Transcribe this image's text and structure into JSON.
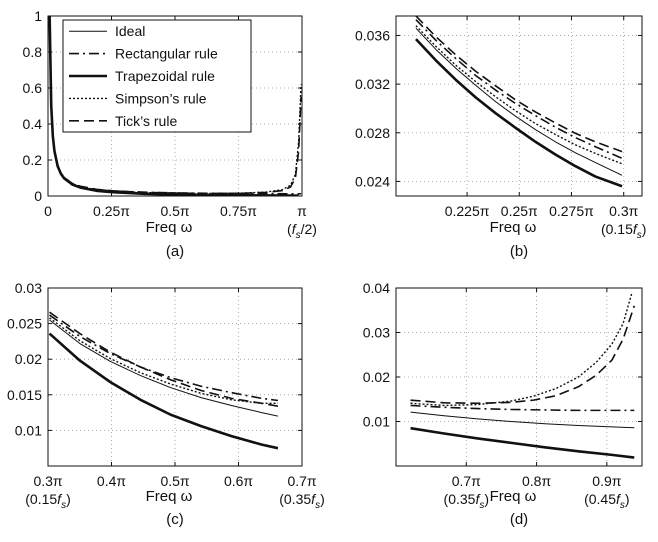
{
  "figure": {
    "background": "#ffffff",
    "ink": "#111111",
    "grid_color": "#999999"
  },
  "chart_data": [
    {
      "panel": "(a)",
      "type": "line",
      "xlabel": "Freq ω",
      "ylabel": "",
      "xlim": [
        0,
        3.1416
      ],
      "ylim": [
        0,
        1
      ],
      "grid": true,
      "x_ticks": [
        {
          "value": 0,
          "label": "0"
        },
        {
          "value": 0.7854,
          "label": "0.25π"
        },
        {
          "value": 1.5708,
          "label": "0.5π"
        },
        {
          "value": 2.3562,
          "label": "0.75π"
        },
        {
          "value": 3.1416,
          "label": "π",
          "sublabel": "(fs/2)"
        }
      ],
      "y_ticks": [
        {
          "value": 0,
          "label": "0"
        },
        {
          "value": 0.2,
          "label": "0.2"
        },
        {
          "value": 0.4,
          "label": "0.4"
        },
        {
          "value": 0.6,
          "label": "0.6"
        },
        {
          "value": 0.8,
          "label": "0.8"
        },
        {
          "value": 1,
          "label": "1"
        }
      ],
      "legend": {
        "placement": "top-center",
        "entries": [
          {
            "label": "Ideal",
            "style": "thin"
          },
          {
            "label": "Rectangular rule",
            "style": "dashdot"
          },
          {
            "label": "Trapezoidal rule",
            "style": "thick"
          },
          {
            "label": "Simpson’s rule",
            "style": "dotted"
          },
          {
            "label": "Tick’s rule",
            "style": "dashed"
          }
        ]
      },
      "series": [
        {
          "style": "thin",
          "x": [
            0.02,
            0.04,
            0.06,
            0.08,
            0.12,
            0.16,
            0.2,
            0.3,
            0.4,
            0.6,
            0.8,
            1.2,
            1.6,
            2.0,
            2.4,
            2.8,
            3.0,
            3.1
          ],
          "y": [
            1.0,
            0.5,
            0.333,
            0.25,
            0.167,
            0.125,
            0.1,
            0.067,
            0.05,
            0.033,
            0.025,
            0.0167,
            0.0125,
            0.01,
            0.0083,
            0.0071,
            0.0067,
            0.0065
          ]
        },
        {
          "style": "dashdot",
          "x": [
            0.02,
            0.04,
            0.06,
            0.08,
            0.12,
            0.16,
            0.2,
            0.3,
            0.4,
            0.6,
            0.8,
            1.2,
            1.6,
            2.0,
            2.4,
            2.8,
            2.95,
            3.05,
            3.1,
            3.13
          ],
          "y": [
            1.0,
            0.5,
            0.334,
            0.251,
            0.168,
            0.127,
            0.102,
            0.069,
            0.053,
            0.036,
            0.028,
            0.021,
            0.017,
            0.015,
            0.014,
            0.013,
            0.0125,
            0.0125,
            0.0125,
            0.0125
          ]
        },
        {
          "style": "thick",
          "x": [
            0.02,
            0.04,
            0.06,
            0.08,
            0.12,
            0.16,
            0.2,
            0.3,
            0.4,
            0.6,
            0.8,
            1.2,
            1.6,
            2.0,
            2.4,
            2.8,
            3.0,
            3.1
          ],
          "y": [
            1.0,
            0.5,
            0.332,
            0.249,
            0.165,
            0.123,
            0.098,
            0.064,
            0.047,
            0.029,
            0.021,
            0.012,
            0.008,
            0.005,
            0.003,
            0.0015,
            0.001,
            0.0005
          ]
        },
        {
          "style": "dotted",
          "x": [
            0.02,
            0.04,
            0.06,
            0.08,
            0.12,
            0.16,
            0.2,
            0.3,
            0.4,
            0.6,
            0.8,
            1.2,
            1.6,
            2.0,
            2.4,
            2.7,
            2.9,
            3.0,
            3.06,
            3.1,
            3.13
          ],
          "y": [
            1.0,
            0.5,
            0.334,
            0.251,
            0.167,
            0.126,
            0.101,
            0.068,
            0.052,
            0.035,
            0.027,
            0.019,
            0.016,
            0.014,
            0.016,
            0.022,
            0.035,
            0.06,
            0.12,
            0.3,
            0.62
          ]
        },
        {
          "style": "dashed",
          "x": [
            0.02,
            0.04,
            0.06,
            0.08,
            0.12,
            0.16,
            0.2,
            0.3,
            0.4,
            0.6,
            0.8,
            1.2,
            1.6,
            2.0,
            2.4,
            2.7,
            2.9,
            3.0,
            3.06,
            3.1,
            3.13
          ],
          "y": [
            1.0,
            0.5,
            0.335,
            0.252,
            0.169,
            0.128,
            0.103,
            0.07,
            0.054,
            0.037,
            0.029,
            0.02,
            0.016,
            0.014,
            0.015,
            0.02,
            0.03,
            0.05,
            0.1,
            0.25,
            0.55
          ]
        }
      ]
    },
    {
      "panel": "(b)",
      "type": "line",
      "xlabel": "Freq ω",
      "ylabel": "",
      "xlim": [
        0.6,
        0.97
      ],
      "ylim": [
        0.0228,
        0.0376
      ],
      "grid": true,
      "x_ticks": [
        {
          "value": 0.7069,
          "label": "0.225π"
        },
        {
          "value": 0.7854,
          "label": "0.25π"
        },
        {
          "value": 0.8639,
          "label": "0.275π"
        },
        {
          "value": 0.9425,
          "label": "0.3π",
          "sublabel": "(0.15fs)"
        }
      ],
      "y_ticks": [
        {
          "value": 0.024,
          "label": "0.024"
        },
        {
          "value": 0.028,
          "label": "0.028"
        },
        {
          "value": 0.032,
          "label": "0.032"
        },
        {
          "value": 0.036,
          "label": "0.036"
        }
      ],
      "series": [
        {
          "style": "thin",
          "x": [
            0.63,
            0.66,
            0.69,
            0.72,
            0.75,
            0.78,
            0.81,
            0.84,
            0.87,
            0.9,
            0.94
          ],
          "y": [
            0.0366,
            0.03485,
            0.0333,
            0.0319,
            0.03055,
            0.02935,
            0.02825,
            0.02725,
            0.02635,
            0.02555,
            0.0245
          ]
        },
        {
          "style": "dashdot",
          "x": [
            0.63,
            0.66,
            0.69,
            0.72,
            0.75,
            0.78,
            0.81,
            0.84,
            0.87,
            0.9,
            0.94
          ],
          "y": [
            0.0373,
            0.0356,
            0.0341,
            0.0327,
            0.0315,
            0.0304,
            0.0294,
            0.02845,
            0.0276,
            0.02685,
            0.0259
          ]
        },
        {
          "style": "thick",
          "x": [
            0.63,
            0.66,
            0.69,
            0.72,
            0.75,
            0.78,
            0.81,
            0.84,
            0.87,
            0.9,
            0.94
          ],
          "y": [
            0.0357,
            0.03395,
            0.03235,
            0.0309,
            0.0296,
            0.0284,
            0.02725,
            0.0262,
            0.02525,
            0.0244,
            0.0236
          ]
        },
        {
          "style": "dotted",
          "x": [
            0.63,
            0.66,
            0.69,
            0.72,
            0.75,
            0.78,
            0.81,
            0.84,
            0.87,
            0.9,
            0.94
          ],
          "y": [
            0.0368,
            0.0351,
            0.03355,
            0.0322,
            0.03095,
            0.0298,
            0.02875,
            0.02785,
            0.027,
            0.0263,
            0.02545
          ]
        },
        {
          "style": "dashed",
          "x": [
            0.63,
            0.66,
            0.69,
            0.72,
            0.75,
            0.78,
            0.81,
            0.84,
            0.87,
            0.9,
            0.94
          ],
          "y": [
            0.0376,
            0.0359,
            0.0344,
            0.03305,
            0.03185,
            0.0307,
            0.0297,
            0.0288,
            0.02795,
            0.02725,
            0.02645
          ]
        }
      ]
    },
    {
      "panel": "(c)",
      "type": "line",
      "xlabel": "Freq ω",
      "ylabel": "",
      "xlim": [
        0.9425,
        2.1991
      ],
      "ylim": [
        0.005,
        0.03
      ],
      "grid": true,
      "x_ticks": [
        {
          "value": 0.9425,
          "label": "0.3π",
          "sublabel": "(0.15fs)"
        },
        {
          "value": 1.2566,
          "label": "0.4π"
        },
        {
          "value": 1.5708,
          "label": "0.5π"
        },
        {
          "value": 1.885,
          "label": "0.6π"
        },
        {
          "value": 2.1991,
          "label": "0.7π",
          "sublabel": "(0.35fs)"
        }
      ],
      "y_ticks": [
        {
          "value": 0.01,
          "label": "0.01"
        },
        {
          "value": 0.015,
          "label": "0.015"
        },
        {
          "value": 0.02,
          "label": "0.02"
        },
        {
          "value": 0.025,
          "label": "0.025"
        },
        {
          "value": 0.03,
          "label": "0.03"
        }
      ],
      "series": [
        {
          "style": "thin",
          "x": [
            0.95,
            1.1,
            1.25,
            1.4,
            1.55,
            1.7,
            1.85,
            2.0,
            2.08
          ],
          "y": [
            0.0255,
            0.0222,
            0.0197,
            0.0177,
            0.016,
            0.0146,
            0.0135,
            0.0125,
            0.012
          ]
        },
        {
          "style": "dashdot",
          "x": [
            0.95,
            1.1,
            1.25,
            1.4,
            1.55,
            1.7,
            1.85,
            2.0,
            2.08
          ],
          "y": [
            0.0262,
            0.0232,
            0.0208,
            0.0189,
            0.0174,
            0.0162,
            0.0153,
            0.0145,
            0.0142
          ]
        },
        {
          "style": "thick",
          "x": [
            0.95,
            1.1,
            1.25,
            1.4,
            1.55,
            1.7,
            1.85,
            2.0,
            2.08
          ],
          "y": [
            0.0236,
            0.0198,
            0.0168,
            0.0143,
            0.0122,
            0.0106,
            0.0092,
            0.008,
            0.0075
          ]
        },
        {
          "style": "dotted",
          "x": [
            0.95,
            1.1,
            1.25,
            1.4,
            1.55,
            1.7,
            1.85,
            2.0,
            2.08
          ],
          "y": [
            0.0258,
            0.0226,
            0.0201,
            0.0181,
            0.0165,
            0.0152,
            0.0143,
            0.0138,
            0.0138
          ]
        },
        {
          "style": "dashed",
          "x": [
            0.95,
            1.1,
            1.25,
            1.4,
            1.55,
            1.7,
            1.85,
            2.0,
            2.08
          ],
          "y": [
            0.0266,
            0.0236,
            0.021,
            0.0189,
            0.0171,
            0.0156,
            0.0145,
            0.0138,
            0.0134
          ]
        }
      ]
    },
    {
      "panel": "(d)",
      "type": "line",
      "xlabel": "Freq ω",
      "ylabel": "",
      "xlim": [
        1.885,
        2.9845
      ],
      "ylim": [
        0.0,
        0.04
      ],
      "grid": true,
      "x_ticks": [
        {
          "value": 2.1991,
          "label": "0.7π",
          "sublabel": "(0.35fs)"
        },
        {
          "value": 2.5133,
          "label": "0.8π"
        },
        {
          "value": 2.8274,
          "label": "0.9π",
          "sublabel": "(0.45fs)"
        }
      ],
      "y_ticks": [
        {
          "value": 0.01,
          "label": "0.01"
        },
        {
          "value": 0.02,
          "label": "0.02"
        },
        {
          "value": 0.03,
          "label": "0.03"
        },
        {
          "value": 0.04,
          "label": "0.04"
        }
      ],
      "series": [
        {
          "style": "thin",
          "x": [
            1.95,
            2.1,
            2.25,
            2.4,
            2.55,
            2.7,
            2.85,
            2.95
          ],
          "y": [
            0.0121,
            0.0113,
            0.0106,
            0.01,
            0.0095,
            0.0091,
            0.0088,
            0.0086
          ]
        },
        {
          "style": "dashdot",
          "x": [
            1.95,
            2.1,
            2.25,
            2.4,
            2.55,
            2.7,
            2.85,
            2.95
          ],
          "y": [
            0.0136,
            0.0132,
            0.0129,
            0.0127,
            0.0126,
            0.0125,
            0.0125,
            0.0125
          ]
        },
        {
          "style": "thick",
          "x": [
            1.95,
            2.1,
            2.25,
            2.4,
            2.55,
            2.7,
            2.85,
            2.95
          ],
          "y": [
            0.0085,
            0.0073,
            0.0062,
            0.0052,
            0.0042,
            0.0033,
            0.0025,
            0.0019
          ]
        },
        {
          "style": "dotted",
          "x": [
            1.95,
            2.1,
            2.25,
            2.4,
            2.5,
            2.6,
            2.7,
            2.78,
            2.85,
            2.9,
            2.94
          ],
          "y": [
            0.0141,
            0.0136,
            0.0138,
            0.0146,
            0.0157,
            0.0174,
            0.02,
            0.0233,
            0.0274,
            0.032,
            0.039
          ]
        },
        {
          "style": "dashed",
          "x": [
            1.95,
            2.1,
            2.25,
            2.4,
            2.5,
            2.6,
            2.7,
            2.78,
            2.85,
            2.9,
            2.95
          ],
          "y": [
            0.0148,
            0.0142,
            0.0141,
            0.0143,
            0.0148,
            0.0158,
            0.0178,
            0.0204,
            0.0238,
            0.0285,
            0.036
          ]
        }
      ]
    }
  ]
}
